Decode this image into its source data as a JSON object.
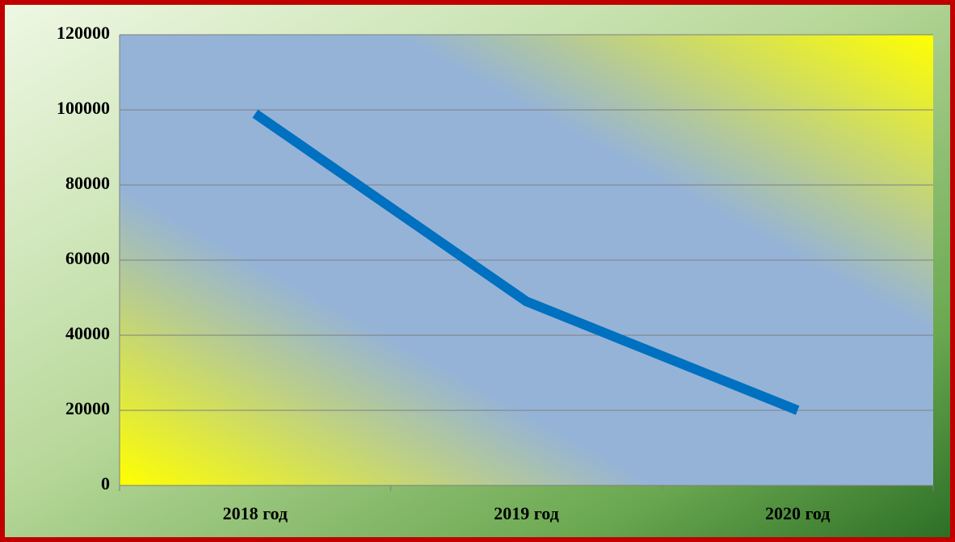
{
  "chart_data": {
    "type": "line",
    "categories": [
      "2018 год",
      "2019 год",
      "2020 год"
    ],
    "series": [
      {
        "name": "",
        "color": "#0070c0",
        "values": [
          99000,
          49000,
          20000
        ]
      }
    ],
    "ylim": [
      0,
      120000
    ],
    "yticks": [
      0,
      20000,
      40000,
      60000,
      80000,
      100000,
      120000
    ],
    "grid": true
  }
}
